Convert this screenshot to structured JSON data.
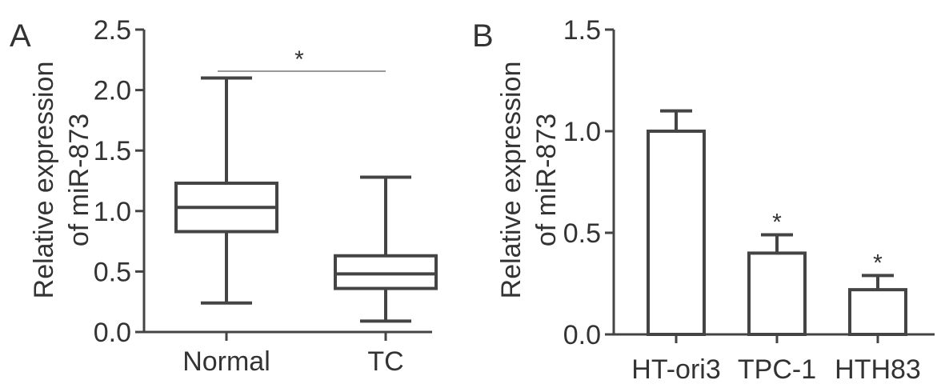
{
  "chart_data": [
    {
      "panel": "A",
      "type": "box",
      "ylabel": [
        "Relative expression",
        "of miR-873"
      ],
      "ylim": [
        0,
        2.5
      ],
      "yticks": [
        "0.0",
        "0.5",
        "1.0",
        "1.5",
        "2.0",
        "2.5"
      ],
      "categories": [
        "Normal",
        "TC"
      ],
      "boxes": [
        {
          "min": 0.24,
          "q1": 0.83,
          "median": 1.03,
          "q3": 1.23,
          "max": 2.1
        },
        {
          "min": 0.09,
          "q1": 0.36,
          "median": 0.48,
          "q3": 0.63,
          "max": 1.28
        }
      ],
      "significance": {
        "between": [
          "Normal",
          "TC"
        ],
        "label": "*"
      }
    },
    {
      "panel": "B",
      "type": "bar",
      "ylabel": [
        "Relative expression",
        "of miR-873"
      ],
      "ylim": [
        0,
        1.5
      ],
      "yticks": [
        "0.0",
        "0.5",
        "1.0",
        "1.5"
      ],
      "categories": [
        "HT-ori3",
        "TPC-1",
        "HTH83"
      ],
      "values": [
        1.0,
        0.4,
        0.22
      ],
      "errors": [
        0.1,
        0.09,
        0.07
      ],
      "annotations": [
        "",
        "*",
        "*"
      ]
    }
  ]
}
